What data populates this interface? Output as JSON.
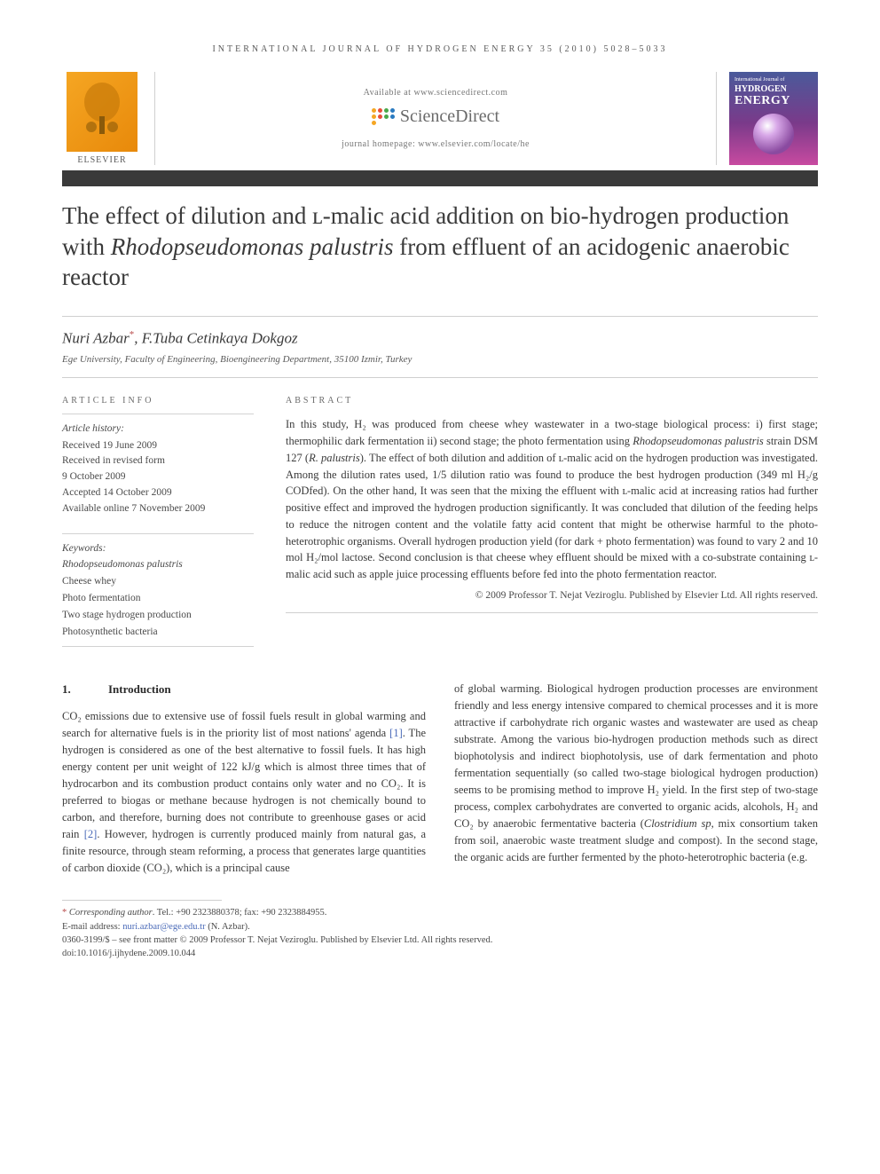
{
  "running_header": "INTERNATIONAL JOURNAL OF HYDROGEN ENERGY 35 (2010) 5028–5033",
  "banner": {
    "elsevier_label": "ELSEVIER",
    "available_text": "Available at www.sciencedirect.com",
    "sciencedirect_text": "ScienceDirect",
    "homepage_text": "journal homepage: www.elsevier.com/locate/he",
    "cover_top": "International Journal of",
    "cover_line1": "HYDROGEN",
    "cover_line2": "ENERGY",
    "sd_dot_colors": [
      "#f5a623",
      "#e94e3a",
      "#4aa84a",
      "#2a7ac0",
      "#f5a623",
      "#e94e3a",
      "#4aa84a",
      "#2a7ac0",
      "#f5a623"
    ]
  },
  "title_parts": {
    "pre": "The effect of dilution and ʟ-malic acid addition on bio-hydrogen production with ",
    "species": "Rhodopseudomonas palustris",
    "post": " from effluent of an acidogenic anaerobic reactor"
  },
  "authors": {
    "a1": "Nuri Azbar",
    "corr_mark": "*",
    "sep": ", ",
    "a2": "F.Tuba Cetinkaya Dokgoz"
  },
  "affiliation": "Ege University, Faculty of Engineering, Bioengineering Department, 35100 Izmir, Turkey",
  "info": {
    "heading": "ARTICLE INFO",
    "history_label": "Article history:",
    "h1": "Received 19 June 2009",
    "h2": "Received in revised form",
    "h3": "9 October 2009",
    "h4": "Accepted 14 October 2009",
    "h5": "Available online 7 November 2009",
    "keywords_label": "Keywords:",
    "k1": "Rhodopseudomonas palustris",
    "k2": "Cheese whey",
    "k3": "Photo fermentation",
    "k4": "Two stage hydrogen production",
    "k5": "Photosynthetic bacteria"
  },
  "abstract": {
    "heading": "ABSTRACT",
    "p1a": "In this study, H₂ was produced from cheese whey wastewater in a two-stage biological process: i) first stage; thermophilic dark fermentation ii) second stage; the photo fermentation using ",
    "p1b_species": "Rhodopseudomonas palustris",
    "p1c": " strain DSM 127 (",
    "p1d_species": "R. palustris",
    "p1e": "). The effect of both dilution and addition of ʟ-malic acid on the hydrogen production was investigated. Among the dilution rates used, 1/5 dilution ratio was found to produce the best hydrogen production (349 ml H₂/g CODfed). On the other hand, It was seen that the mixing the effluent with ʟ-malic acid at increasing ratios had further positive effect and improved the hydrogen production significantly. It was concluded that dilution of the feeding helps to reduce the nitrogen content and the volatile fatty acid content that might be otherwise harmful to the photo-heterotrophic organisms. Overall hydrogen production yield (for dark + photo fermentation) was found to vary 2 and 10 mol H₂/mol lactose. Second conclusion is that cheese whey effluent should be mixed with a co-substrate containing ʟ-malic acid such as apple juice processing effluents before fed into the photo fermentation reactor.",
    "copyright": "© 2009 Professor T. Nejat Veziroglu. Published by Elsevier Ltd. All rights reserved."
  },
  "body": {
    "section_num": "1.",
    "section_title": "Introduction",
    "col1_a": "CO₂ emissions due to extensive use of fossil fuels result in global warming and search for alternative fuels is in the priority list of most nations' agenda ",
    "ref1": "[1]",
    "col1_b": ". The hydrogen is considered as one of the best alternative to fossil fuels. It has high energy content per unit weight of 122 kJ/g which is almost three times that of hydrocarbon and its combustion product contains only water and no CO₂. It is preferred to biogas or methane because hydrogen is not chemically bound to carbon, and therefore, burning does not contribute to greenhouse gases or acid rain ",
    "ref2": "[2]",
    "col1_c": ". However, hydrogen is currently produced mainly from natural gas, a finite resource, through steam reforming, a process that generates large quantities of carbon dioxide (CO₂), which is a principal cause",
    "col2_a": "of global warming. Biological hydrogen production processes are environment friendly and less energy intensive compared to chemical processes and it is more attractive if carbohydrate rich organic wastes and wastewater are used as cheap substrate. Among the various bio-hydrogen production methods such as direct biophotolysis and indirect biophotolysis, use of dark fermentation and photo fermentation sequentially (so called two-stage biological hydrogen production) seems to be promising method to improve H₂ yield. In the first step of two-stage process, complex carbohydrates are converted to organic acids, alcohols, H₂ and CO₂ by anaerobic fermentative bacteria (",
    "col2_species": "Clostridium sp",
    "col2_b": ", mix consortium taken from soil, anaerobic waste treatment sludge and compost). In the second stage, the organic acids are further fermented by the photo-heterotrophic bacteria (e.g."
  },
  "footnotes": {
    "corr_label": "Corresponding author",
    "corr_contact": ". Tel.: +90 2323880378; fax: +90 2323884955.",
    "email_label": "E-mail address: ",
    "email": "nuri.azbar@ege.edu.tr",
    "email_after": " (N. Azbar).",
    "front": "0360-3199/$ – see front matter © 2009 Professor T. Nejat Veziroglu. Published by Elsevier Ltd. All rights reserved.",
    "doi": "doi:10.1016/j.ijhydene.2009.10.044"
  },
  "colors": {
    "text": "#3a3a3a",
    "rule_dark": "#3a3a3a",
    "rule_light": "#cfcfcf",
    "link": "#4a6ab8",
    "corr_mark": "#b84a4a",
    "elsevier_orange": "#e8890a"
  }
}
